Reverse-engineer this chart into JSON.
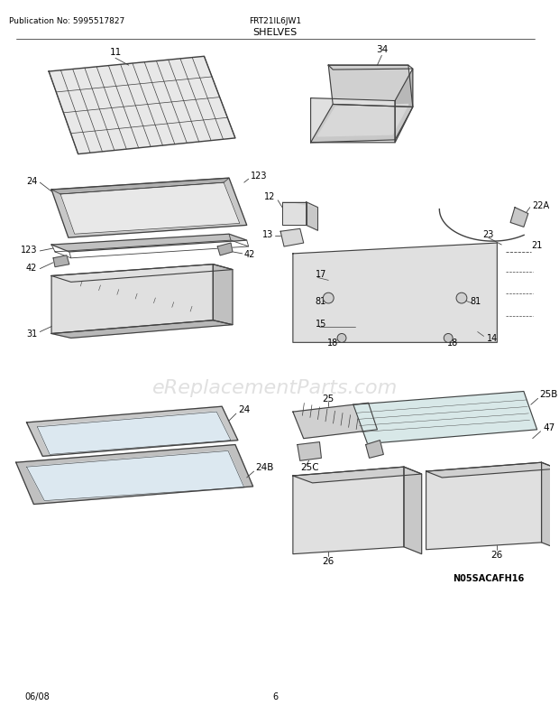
{
  "publication_no": "Publication No: 5995517827",
  "model": "FRT21IL6JW1",
  "title": "SHELVES",
  "date": "06/08",
  "page": "6",
  "watermark": "eReplacementParts.com",
  "part_code": "N05SACAFH16",
  "background_color": "#ffffff",
  "line_color": "#404040",
  "text_color": "#000000",
  "gray_fill": "#d8d8d8",
  "light_fill": "#f0f0f0"
}
